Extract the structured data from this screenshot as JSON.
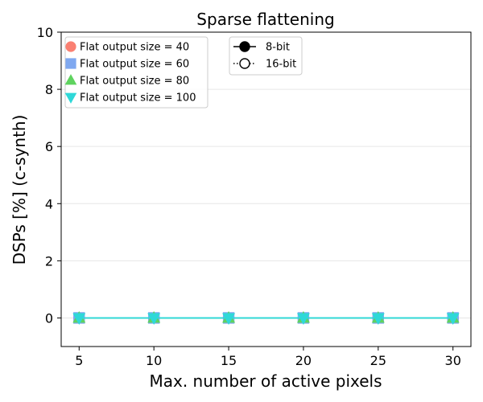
{
  "chart_data": {
    "type": "line",
    "title": "Sparse flattening",
    "xlabel": "Max. number of active pixels",
    "ylabel": "DSPs [%] (c-synth)",
    "xlim": [
      3.8,
      31.2
    ],
    "ylim": [
      -1,
      10
    ],
    "xticks": [
      5,
      10,
      15,
      20,
      25,
      30
    ],
    "yticks": [
      0,
      2,
      4,
      6,
      8,
      10
    ],
    "grid": "y-major",
    "x": [
      5,
      10,
      15,
      20,
      25,
      30
    ],
    "series": [
      {
        "name": "Flat output size = 40",
        "bits": "8-bit",
        "color": "#fa8072",
        "marker": "circle",
        "values": [
          0,
          0,
          0,
          0,
          0,
          0
        ]
      },
      {
        "name": "Flat output size = 40",
        "bits": "16-bit",
        "color": "#fa8072",
        "marker": "circle",
        "values": [
          0,
          0,
          0,
          0,
          0,
          0
        ]
      },
      {
        "name": "Flat output size = 60",
        "bits": "8-bit",
        "color": "#7fa8f0",
        "marker": "square",
        "values": [
          0,
          0,
          0,
          0,
          0,
          0
        ]
      },
      {
        "name": "Flat output size = 60",
        "bits": "16-bit",
        "color": "#7fa8f0",
        "marker": "square",
        "values": [
          0,
          0,
          0,
          0,
          0,
          0
        ]
      },
      {
        "name": "Flat output size = 80",
        "bits": "8-bit",
        "color": "#5fd35f",
        "marker": "triangle-up",
        "values": [
          0,
          0,
          0,
          0,
          0,
          0
        ]
      },
      {
        "name": "Flat output size = 80",
        "bits": "16-bit",
        "color": "#5fd35f",
        "marker": "triangle-up",
        "values": [
          0,
          0,
          0,
          0,
          0,
          0
        ]
      },
      {
        "name": "Flat output size = 100",
        "bits": "8-bit",
        "color": "#2fd8d8",
        "marker": "triangle-down",
        "values": [
          0,
          0,
          0,
          0,
          0,
          0
        ]
      },
      {
        "name": "Flat output size = 100",
        "bits": "16-bit",
        "color": "#2fd8d8",
        "marker": "triangle-down",
        "values": [
          0,
          0,
          0,
          0,
          0,
          0
        ]
      }
    ],
    "legend_sizes": {
      "placement": "top-left",
      "entries": [
        {
          "label": "Flat output size = 40",
          "color": "#fa8072",
          "marker": "circle"
        },
        {
          "label": "Flat output size = 60",
          "color": "#7fa8f0",
          "marker": "square"
        },
        {
          "label": "Flat output size = 80",
          "color": "#5fd35f",
          "marker": "triangle-up"
        },
        {
          "label": "Flat output size = 100",
          "color": "#2fd8d8",
          "marker": "triangle-down"
        }
      ]
    },
    "legend_bits": {
      "placement": "top-center",
      "entries": [
        {
          "label": "8-bit",
          "line": "solid",
          "marker_fill": "filled"
        },
        {
          "label": "16-bit",
          "line": "dotted",
          "marker_fill": "hollow"
        }
      ]
    }
  }
}
